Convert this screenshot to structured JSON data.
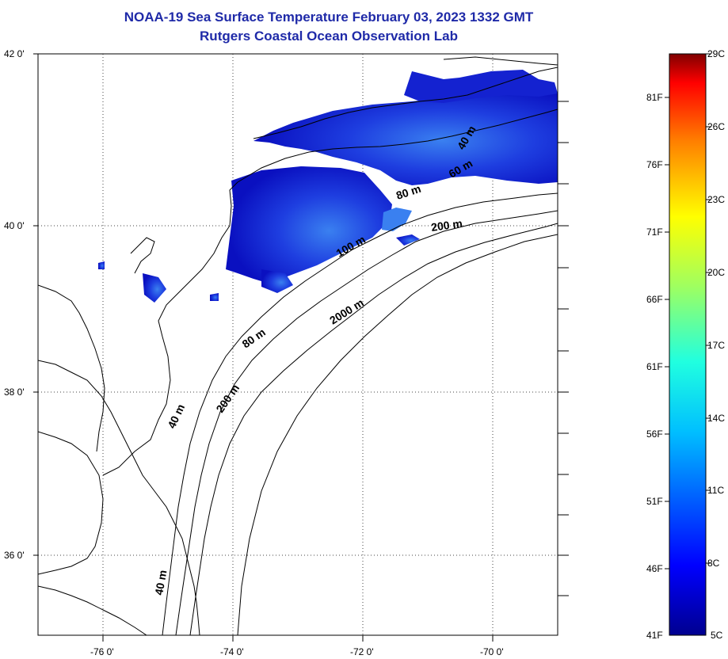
{
  "header": {
    "title_line1": "NOAA-19 Sea Surface Temperature February 03, 2023 1332 GMT",
    "title_line2": "Rutgers Coastal Ocean Observation Lab"
  },
  "map": {
    "lat_labels": [
      "42 0'",
      "40 0'",
      "38 0'",
      "36 0'"
    ],
    "lon_labels": [
      "-76 0'",
      "-74 0'",
      "-72 0'",
      "-70 0'"
    ],
    "contour_labels": [
      "80 m",
      "200 m",
      "100 m",
      "2000 m",
      "80 m",
      "40 m",
      "200 m",
      "40 m",
      "60 m",
      "40 m"
    ]
  },
  "colorbar": {
    "fahrenheit_labels": [
      "81F",
      "76F",
      "71F",
      "66F",
      "61F",
      "56F",
      "51F",
      "46F",
      "41F"
    ],
    "celsius_labels": [
      "29C",
      "26C",
      "23C",
      "20C",
      "17C",
      "14C",
      "11C",
      "8C",
      "5C"
    ]
  },
  "colors": {
    "title": "#1f2aa8",
    "sst_cold": "#1010c8",
    "sst_mid": "#2040e8",
    "sst_warm": "#3878f0"
  }
}
